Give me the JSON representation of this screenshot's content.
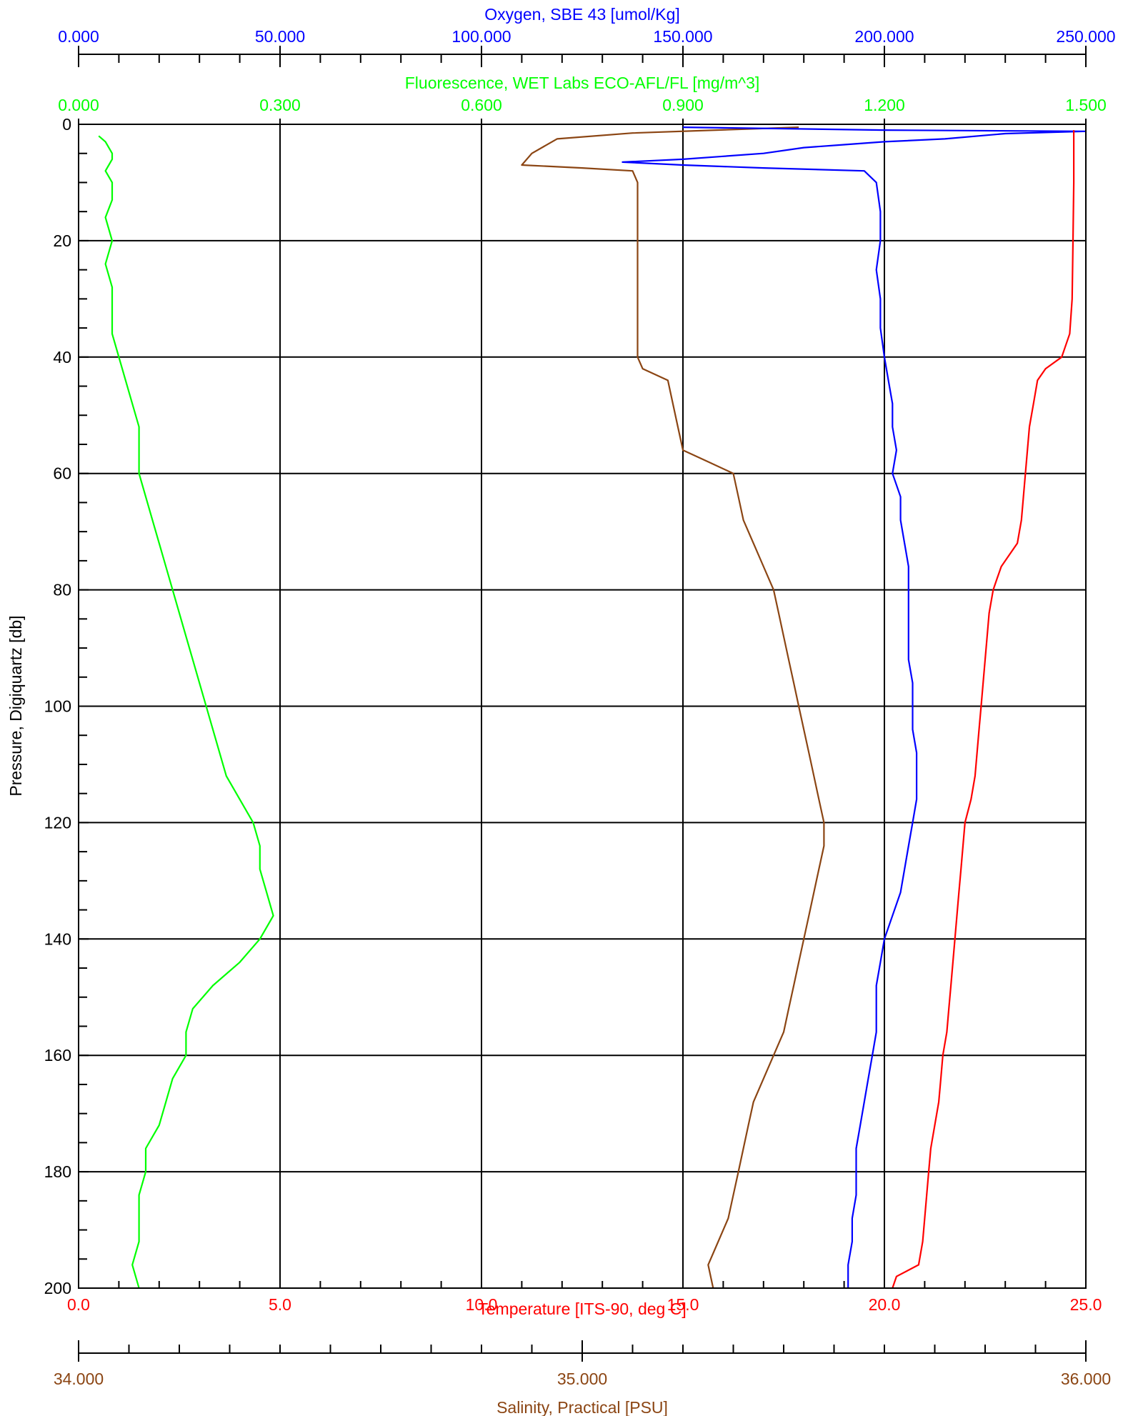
{
  "chart_data": {
    "type": "line",
    "axes": {
      "pressure": {
        "label": "Pressure, Digiquartz [db]",
        "range": [
          0,
          200
        ],
        "inverted": true,
        "ticks": [
          0,
          20,
          40,
          60,
          80,
          100,
          120,
          140,
          160,
          180,
          200
        ],
        "tick_labels": [
          "0",
          "20",
          "40",
          "60",
          "80",
          "100",
          "120",
          "140",
          "160",
          "180",
          "200"
        ],
        "minor_step": 5
      },
      "oxygen": {
        "label": "Oxygen, SBE 43 [umol/Kg]",
        "color": "#0000ff",
        "range": [
          0,
          250000
        ],
        "ticks": [
          0,
          50000,
          100000,
          150000,
          200000,
          250000
        ],
        "tick_labels": [
          "0.000",
          "50.000",
          "100.000",
          "150.000",
          "200.000",
          "250.000"
        ]
      },
      "fluorescence": {
        "label": "Fluorescence, WET Labs ECO-AFL/FL [mg/m^3]",
        "color": "#00ff00",
        "range": [
          0,
          1.5
        ],
        "ticks": [
          0,
          0.3,
          0.6,
          0.9,
          1.2,
          1.5
        ],
        "tick_labels": [
          "0.000",
          "0.300",
          "0.600",
          "0.900",
          "1.200",
          "1.500"
        ]
      },
      "temperature": {
        "label": "Temperature [ITS-90, deg C]",
        "color": "#ff0000",
        "range": [
          0,
          25
        ],
        "ticks": [
          0,
          5,
          10,
          15,
          20,
          25
        ],
        "tick_labels": [
          "0.0",
          "5.0",
          "10.0",
          "15.0",
          "20.0",
          "25.0"
        ]
      },
      "salinity": {
        "label": "Salinity, Practical [PSU]",
        "color": "#8b4513",
        "range": [
          34,
          36
        ],
        "ticks": [
          34,
          35,
          36
        ],
        "tick_labels": [
          "34.000",
          "35.000",
          "36.000"
        ],
        "minor_step": 0.1
      }
    },
    "grid": true,
    "series": [
      {
        "color": "#00ff00",
        "x_axis": "fluorescence",
        "points": [
          [
            0.03,
            2
          ],
          [
            0.04,
            3
          ],
          [
            0.05,
            5
          ],
          [
            0.05,
            6
          ],
          [
            0.04,
            8
          ],
          [
            0.05,
            10
          ],
          [
            0.05,
            13
          ],
          [
            0.04,
            16
          ],
          [
            0.05,
            20
          ],
          [
            0.04,
            24
          ],
          [
            0.05,
            28
          ],
          [
            0.05,
            32
          ],
          [
            0.05,
            36
          ],
          [
            0.06,
            40
          ],
          [
            0.07,
            44
          ],
          [
            0.08,
            48
          ],
          [
            0.09,
            52
          ],
          [
            0.09,
            56
          ],
          [
            0.09,
            60
          ],
          [
            0.1,
            64
          ],
          [
            0.11,
            68
          ],
          [
            0.12,
            72
          ],
          [
            0.13,
            76
          ],
          [
            0.14,
            80
          ],
          [
            0.15,
            84
          ],
          [
            0.16,
            88
          ],
          [
            0.17,
            92
          ],
          [
            0.18,
            96
          ],
          [
            0.19,
            100
          ],
          [
            0.2,
            104
          ],
          [
            0.21,
            108
          ],
          [
            0.22,
            112
          ],
          [
            0.24,
            116
          ],
          [
            0.26,
            120
          ],
          [
            0.27,
            124
          ],
          [
            0.27,
            128
          ],
          [
            0.28,
            132
          ],
          [
            0.29,
            136
          ],
          [
            0.27,
            140
          ],
          [
            0.24,
            144
          ],
          [
            0.2,
            148
          ],
          [
            0.17,
            152
          ],
          [
            0.16,
            156
          ],
          [
            0.16,
            160
          ],
          [
            0.14,
            164
          ],
          [
            0.13,
            168
          ],
          [
            0.12,
            172
          ],
          [
            0.1,
            176
          ],
          [
            0.1,
            180
          ],
          [
            0.09,
            184
          ],
          [
            0.09,
            188
          ],
          [
            0.09,
            192
          ],
          [
            0.08,
            196
          ],
          [
            0.09,
            200
          ]
        ]
      },
      {
        "color": "#8b4513",
        "x_axis": "salinity",
        "points": [
          [
            35.43,
            0.5
          ],
          [
            35.1,
            1.5
          ],
          [
            34.95,
            2.5
          ],
          [
            34.9,
            5
          ],
          [
            34.88,
            7
          ],
          [
            35.0,
            7.5
          ],
          [
            35.1,
            8
          ],
          [
            35.11,
            10
          ],
          [
            35.11,
            20
          ],
          [
            35.11,
            30
          ],
          [
            35.11,
            40
          ],
          [
            35.12,
            42
          ],
          [
            35.17,
            44
          ],
          [
            35.18,
            48
          ],
          [
            35.19,
            52
          ],
          [
            35.2,
            56
          ],
          [
            35.25,
            58
          ],
          [
            35.3,
            60
          ],
          [
            35.31,
            64
          ],
          [
            35.32,
            68
          ],
          [
            35.34,
            72
          ],
          [
            35.36,
            76
          ],
          [
            35.38,
            80
          ],
          [
            35.39,
            84
          ],
          [
            35.4,
            88
          ],
          [
            35.41,
            92
          ],
          [
            35.42,
            96
          ],
          [
            35.43,
            100
          ],
          [
            35.44,
            104
          ],
          [
            35.45,
            108
          ],
          [
            35.46,
            112
          ],
          [
            35.47,
            116
          ],
          [
            35.48,
            120
          ],
          [
            35.48,
            124
          ],
          [
            35.47,
            128
          ],
          [
            35.46,
            132
          ],
          [
            35.45,
            136
          ],
          [
            35.44,
            140
          ],
          [
            35.43,
            144
          ],
          [
            35.42,
            148
          ],
          [
            35.41,
            152
          ],
          [
            35.4,
            156
          ],
          [
            35.38,
            160
          ],
          [
            35.36,
            164
          ],
          [
            35.34,
            168
          ],
          [
            35.33,
            172
          ],
          [
            35.32,
            176
          ],
          [
            35.31,
            180
          ],
          [
            35.3,
            184
          ],
          [
            35.29,
            188
          ],
          [
            35.27,
            192
          ],
          [
            35.25,
            196
          ],
          [
            35.26,
            200
          ]
        ]
      },
      {
        "color": "#0000ff",
        "x_axis": "oxygen",
        "points": [
          [
            150000,
            0.5
          ],
          [
            200000,
            1
          ],
          [
            250000,
            1.2
          ],
          [
            230000,
            1.6
          ],
          [
            215000,
            2.5
          ],
          [
            200000,
            3
          ],
          [
            190000,
            3.5
          ],
          [
            180000,
            4
          ],
          [
            170000,
            5
          ],
          [
            160000,
            5.5
          ],
          [
            150000,
            6
          ],
          [
            135000,
            6.5
          ],
          [
            150000,
            7
          ],
          [
            170000,
            7.5
          ],
          [
            195000,
            8
          ],
          [
            198000,
            10
          ],
          [
            199000,
            15
          ],
          [
            199000,
            20
          ],
          [
            198000,
            25
          ],
          [
            199000,
            30
          ],
          [
            199000,
            35
          ],
          [
            200000,
            40
          ],
          [
            201000,
            44
          ],
          [
            202000,
            48
          ],
          [
            202000,
            52
          ],
          [
            203000,
            56
          ],
          [
            202000,
            60
          ],
          [
            204000,
            64
          ],
          [
            204000,
            68
          ],
          [
            205000,
            72
          ],
          [
            206000,
            76
          ],
          [
            206000,
            80
          ],
          [
            206000,
            84
          ],
          [
            206000,
            88
          ],
          [
            206000,
            92
          ],
          [
            207000,
            96
          ],
          [
            207000,
            100
          ],
          [
            207000,
            104
          ],
          [
            208000,
            108
          ],
          [
            208000,
            112
          ],
          [
            208000,
            116
          ],
          [
            207000,
            120
          ],
          [
            206000,
            124
          ],
          [
            205000,
            128
          ],
          [
            204000,
            132
          ],
          [
            202000,
            136
          ],
          [
            200000,
            140
          ],
          [
            199000,
            144
          ],
          [
            198000,
            148
          ],
          [
            198000,
            152
          ],
          [
            198000,
            156
          ],
          [
            197000,
            160
          ],
          [
            196000,
            164
          ],
          [
            195000,
            168
          ],
          [
            194000,
            172
          ],
          [
            193000,
            176
          ],
          [
            193000,
            180
          ],
          [
            193000,
            184
          ],
          [
            192000,
            188
          ],
          [
            192000,
            192
          ],
          [
            191000,
            196
          ],
          [
            191000,
            200
          ]
        ]
      },
      {
        "color": "#ff0000",
        "x_axis": "temperature",
        "points": [
          [
            24.7,
            1
          ],
          [
            24.7,
            5
          ],
          [
            24.7,
            10
          ],
          [
            24.68,
            20
          ],
          [
            24.66,
            30
          ],
          [
            24.6,
            36
          ],
          [
            24.4,
            40
          ],
          [
            24.0,
            42
          ],
          [
            23.8,
            44
          ],
          [
            23.7,
            48
          ],
          [
            23.6,
            52
          ],
          [
            23.55,
            56
          ],
          [
            23.5,
            60
          ],
          [
            23.45,
            64
          ],
          [
            23.4,
            68
          ],
          [
            23.3,
            72
          ],
          [
            23.1,
            74
          ],
          [
            22.9,
            76
          ],
          [
            22.8,
            78
          ],
          [
            22.7,
            80
          ],
          [
            22.6,
            84
          ],
          [
            22.55,
            88
          ],
          [
            22.5,
            92
          ],
          [
            22.45,
            96
          ],
          [
            22.4,
            100
          ],
          [
            22.35,
            104
          ],
          [
            22.3,
            108
          ],
          [
            22.25,
            112
          ],
          [
            22.15,
            116
          ],
          [
            22.0,
            120
          ],
          [
            21.95,
            124
          ],
          [
            21.9,
            128
          ],
          [
            21.85,
            132
          ],
          [
            21.8,
            136
          ],
          [
            21.75,
            140
          ],
          [
            21.7,
            144
          ],
          [
            21.65,
            148
          ],
          [
            21.6,
            152
          ],
          [
            21.55,
            156
          ],
          [
            21.45,
            160
          ],
          [
            21.4,
            164
          ],
          [
            21.35,
            168
          ],
          [
            21.25,
            172
          ],
          [
            21.15,
            176
          ],
          [
            21.1,
            180
          ],
          [
            21.05,
            184
          ],
          [
            21.0,
            188
          ],
          [
            20.95,
            192
          ],
          [
            20.85,
            196
          ],
          [
            20.3,
            198
          ],
          [
            20.2,
            200
          ]
        ]
      }
    ]
  }
}
